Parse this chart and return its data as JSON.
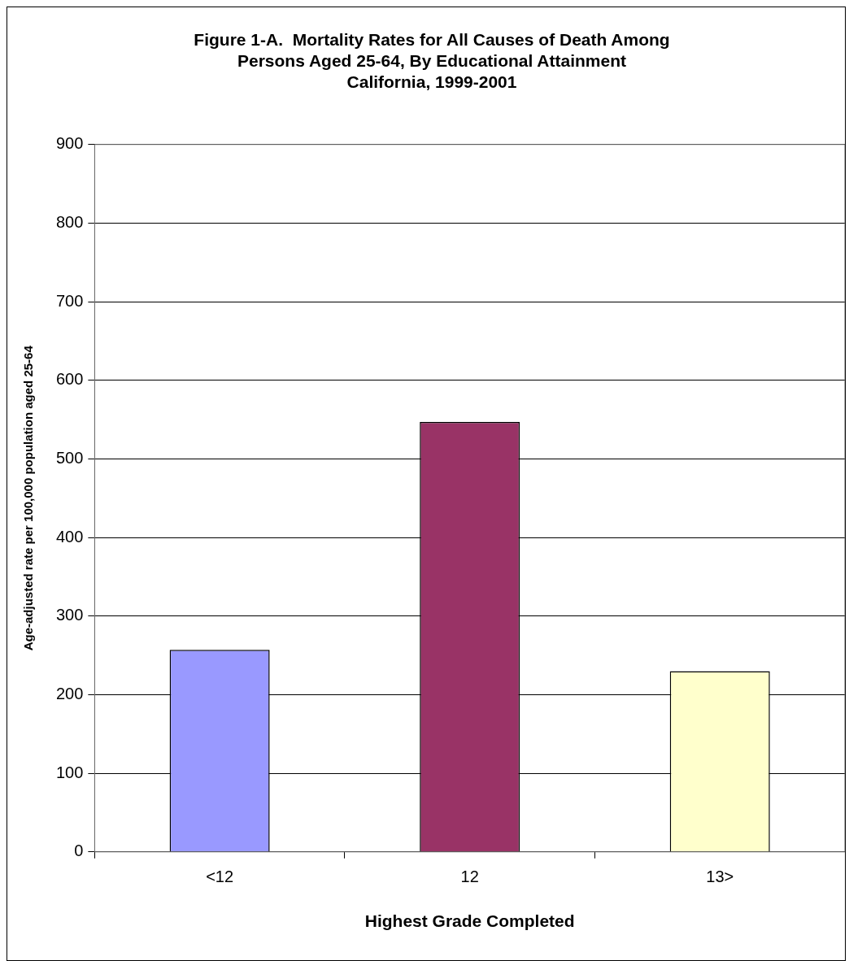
{
  "chart_data": {
    "type": "bar",
    "title": "Figure 1-A.  Mortality Rates for All Causes of Death Among\nPersons Aged 25-64, By Educational Attainment\nCalifornia, 1999-2001",
    "xlabel": "Highest Grade Completed",
    "ylabel": "Age-adjusted rate per 100,000 population aged 25-64",
    "categories": [
      "<12",
      "12",
      "13>"
    ],
    "values": [
      257,
      547,
      230
    ],
    "colors": [
      "#9999ff",
      "#993366",
      "#ffffcc"
    ],
    "ylim": [
      0,
      900
    ],
    "yticks": [
      0,
      100,
      200,
      300,
      400,
      500,
      600,
      700,
      800,
      900
    ],
    "grid": "y",
    "legend": false
  }
}
